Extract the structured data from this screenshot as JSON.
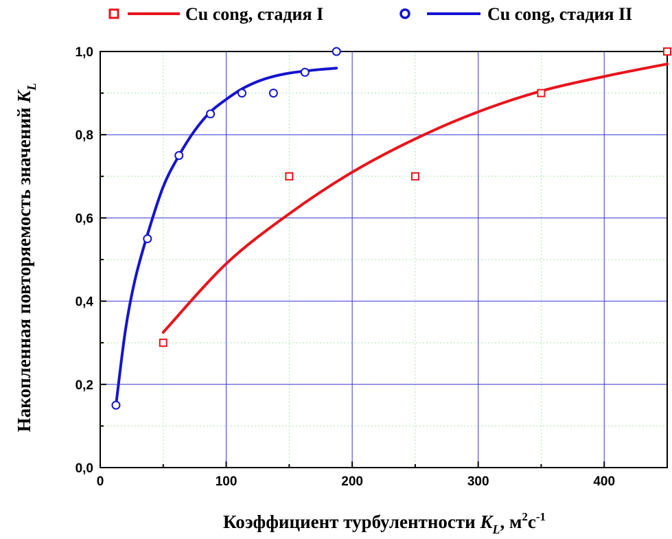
{
  "chart_data": {
    "type": "scatter",
    "xlabel_main": "Коэффициент турбулентности ",
    "xlabel_symbol": "K",
    "xlabel_subscript": "L",
    "xlabel_units": ", м",
    "xlabel_units_sup": "2",
    "xlabel_units2": "с",
    "xlabel_units2_sup": "-1",
    "ylabel_main": "Накопленная повторяемость значений ",
    "ylabel_symbol": "K",
    "ylabel_subscript": "L",
    "xlim": [
      0,
      450
    ],
    "ylim": [
      0,
      1.0
    ],
    "x_ticks": [
      0,
      100,
      200,
      300,
      400
    ],
    "x_tick_labels": [
      "0",
      "100",
      "200",
      "300",
      "400"
    ],
    "y_ticks": [
      0,
      0.2,
      0.4,
      0.6,
      0.8,
      1.0
    ],
    "y_tick_labels": [
      "0,0",
      "0,2",
      "0,4",
      "0,6",
      "0,8",
      "1,0"
    ],
    "grid": true,
    "legend_position": "top",
    "legend": [
      {
        "label": "Cu cong, стадия I",
        "marker": "square",
        "color": "#e8141b"
      },
      {
        "label": "Cu cong, стадия II",
        "marker": "circle",
        "color": "#1414d0"
      }
    ],
    "series": [
      {
        "name": "Cu cong, стадия I",
        "color": "#e8141b",
        "marker": "square",
        "points": {
          "x": [
            50,
            150,
            250,
            350,
            450
          ],
          "y": [
            0.3,
            0.7,
            0.7,
            0.9,
            1.0
          ]
        },
        "fit": {
          "x": [
            50,
            100,
            150,
            200,
            250,
            300,
            350,
            400,
            450
          ],
          "y": [
            0.325,
            0.49,
            0.61,
            0.71,
            0.79,
            0.855,
            0.905,
            0.94,
            0.97
          ]
        }
      },
      {
        "name": "Cu cong, стадия II",
        "color": "#1414d0",
        "marker": "circle",
        "points": {
          "x": [
            12.5,
            37.5,
            62.5,
            87.5,
            112.5,
            137.5,
            162.5,
            187.5
          ],
          "y": [
            0.15,
            0.55,
            0.75,
            0.85,
            0.9,
            0.9,
            0.95,
            1.0
          ]
        },
        "fit": {
          "x": [
            12.5,
            20,
            27.5,
            37.5,
            50,
            62.5,
            75,
            87.5,
            100,
            112.5,
            125,
            137.5,
            150,
            162.5,
            175,
            187.5
          ],
          "y": [
            0.15,
            0.33,
            0.45,
            0.56,
            0.675,
            0.75,
            0.81,
            0.855,
            0.885,
            0.91,
            0.928,
            0.94,
            0.948,
            0.953,
            0.957,
            0.96
          ]
        }
      }
    ]
  }
}
